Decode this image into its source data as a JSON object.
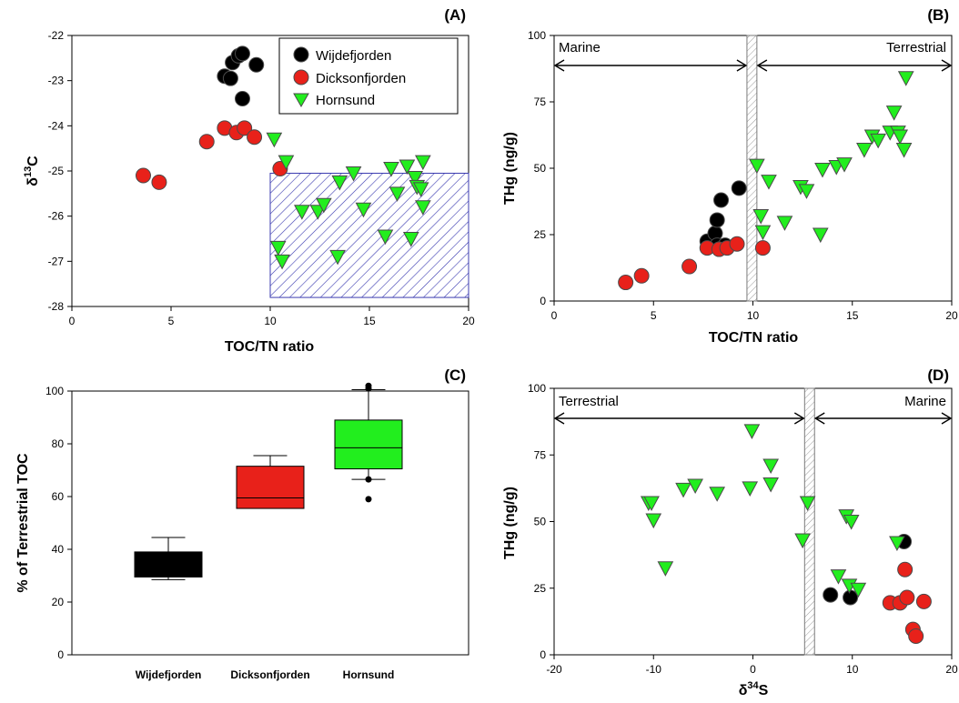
{
  "colors": {
    "wijdefjorden": "#000000",
    "dicksonfjorden": "#e8211a",
    "hornsund": "#22ee1e",
    "hatch": "#3b3bb0",
    "marker_edge": "#4a4a4a"
  },
  "panels": {
    "A": {
      "tag": "(A)",
      "xlabel": "TOC/TN ratio",
      "ylabel_main": "δ",
      "ylabel_sup": "13",
      "ylabel_tail": "C",
      "xlim": [
        0,
        20
      ],
      "ylim": [
        -28,
        -22
      ],
      "xticks": [
        "0",
        "5",
        "10",
        "15",
        "20"
      ],
      "yticks": [
        "-22",
        "-23",
        "-24",
        "-25",
        "-26",
        "-27",
        "-28"
      ],
      "legend": [
        "Wijdefjorden",
        "Dicksonfjorden",
        "Hornsund"
      ]
    },
    "B": {
      "tag": "(B)",
      "xlabel": "TOC/TN ratio",
      "ylabel": "THg (ng/g)",
      "xlim": [
        0,
        20
      ],
      "ylim": [
        0,
        100
      ],
      "xticks": [
        "0",
        "5",
        "10",
        "15",
        "20"
      ],
      "yticks": [
        "0",
        "25",
        "50",
        "75",
        "100"
      ],
      "left_region": "Marine",
      "right_region": "Terrestrial"
    },
    "C": {
      "tag": "(C)",
      "ylabel": "% of Terrestrial TOC",
      "ylim": [
        0,
        100
      ],
      "yticks": [
        "0",
        "20",
        "40",
        "60",
        "80",
        "100"
      ],
      "categories": [
        "Wijdefjorden",
        "Dicksonfjorden",
        "Hornsund"
      ]
    },
    "D": {
      "tag": "(D)",
      "xlabel_main": "δ",
      "xlabel_sup": "34",
      "xlabel_tail": "S",
      "ylabel": "THg (ng/g)",
      "xlim": [
        -20,
        20
      ],
      "ylim": [
        0,
        100
      ],
      "xticks": [
        "-20",
        "-10",
        "0",
        "10",
        "20"
      ],
      "yticks": [
        "0",
        "25",
        "50",
        "75",
        "100"
      ],
      "left_region": "Terrestrial",
      "right_region": "Marine"
    }
  },
  "chart_data": [
    {
      "panel": "A",
      "type": "scatter",
      "xlim": [
        0,
        20
      ],
      "ylim": [
        -28,
        -22
      ],
      "legend_position": "top-right",
      "shaded_region": {
        "x": [
          10,
          20
        ],
        "y": [
          -27.8,
          -25.05
        ]
      },
      "series": [
        {
          "name": "Wijdefjorden",
          "marker": "circle",
          "points": [
            [
              7.7,
              -22.9
            ],
            [
              8.1,
              -22.6
            ],
            [
              8.4,
              -22.45
            ],
            [
              8.6,
              -22.4
            ],
            [
              9.3,
              -22.65
            ],
            [
              8.0,
              -22.95
            ],
            [
              8.6,
              -23.4
            ]
          ]
        },
        {
          "name": "Dicksonfjorden",
          "marker": "circle",
          "points": [
            [
              3.6,
              -25.1
            ],
            [
              4.4,
              -25.25
            ],
            [
              6.8,
              -24.35
            ],
            [
              7.7,
              -24.05
            ],
            [
              8.3,
              -24.15
            ],
            [
              8.7,
              -24.05
            ],
            [
              9.2,
              -24.25
            ],
            [
              10.5,
              -24.95
            ]
          ]
        },
        {
          "name": "Hornsund",
          "marker": "triangle-down",
          "points": [
            [
              10.2,
              -24.3
            ],
            [
              10.8,
              -24.8
            ],
            [
              10.4,
              -26.7
            ],
            [
              10.6,
              -27.0
            ],
            [
              11.6,
              -25.9
            ],
            [
              12.4,
              -25.9
            ],
            [
              12.7,
              -25.75
            ],
            [
              13.4,
              -26.9
            ],
            [
              13.5,
              -25.25
            ],
            [
              14.2,
              -25.05
            ],
            [
              14.7,
              -25.85
            ],
            [
              15.8,
              -26.45
            ],
            [
              16.1,
              -24.95
            ],
            [
              16.4,
              -25.5
            ],
            [
              16.9,
              -24.9
            ],
            [
              17.1,
              -26.5
            ],
            [
              17.3,
              -25.15
            ],
            [
              17.4,
              -25.35
            ],
            [
              17.6,
              -25.4
            ],
            [
              17.7,
              -24.8
            ],
            [
              17.7,
              -25.8
            ]
          ]
        }
      ]
    },
    {
      "panel": "B",
      "type": "scatter",
      "xlim": [
        0,
        20
      ],
      "ylim": [
        0,
        100
      ],
      "divider_x": [
        9.7,
        10.2
      ],
      "arrows": [
        {
          "label": "Marine",
          "from": 0,
          "to": 9.7
        },
        {
          "label": "Terrestrial",
          "from": 10.2,
          "to": 20
        }
      ],
      "series": [
        {
          "name": "Wijdefjorden",
          "marker": "circle",
          "points": [
            [
              7.7,
              22.5
            ],
            [
              8.1,
              25.5
            ],
            [
              8.2,
              30.5
            ],
            [
              8.4,
              38.0
            ],
            [
              9.3,
              42.5
            ],
            [
              8.2,
              21.0
            ],
            [
              8.6,
              21.0
            ]
          ]
        },
        {
          "name": "Dicksonfjorden",
          "marker": "circle",
          "points": [
            [
              3.6,
              7.0
            ],
            [
              4.4,
              9.5
            ],
            [
              6.8,
              13.0
            ],
            [
              7.7,
              20.0
            ],
            [
              8.3,
              19.5
            ],
            [
              8.7,
              20.0
            ],
            [
              9.2,
              21.5
            ],
            [
              10.5,
              20.0
            ]
          ]
        },
        {
          "name": "Hornsund",
          "marker": "triangle-down",
          "points": [
            [
              10.2,
              51.0
            ],
            [
              10.4,
              32.0
            ],
            [
              10.5,
              26.0
            ],
            [
              10.8,
              45.0
            ],
            [
              11.6,
              29.5
            ],
            [
              12.4,
              43.0
            ],
            [
              12.7,
              41.5
            ],
            [
              13.4,
              25.0
            ],
            [
              13.5,
              49.5
            ],
            [
              14.2,
              50.5
            ],
            [
              14.6,
              51.5
            ],
            [
              15.6,
              57.0
            ],
            [
              16.0,
              62.0
            ],
            [
              16.3,
              60.5
            ],
            [
              16.9,
              63.5
            ],
            [
              17.1,
              71.0
            ],
            [
              17.3,
              63.5
            ],
            [
              17.4,
              62.0
            ],
            [
              17.6,
              57.0
            ],
            [
              17.7,
              84.0
            ]
          ]
        }
      ]
    },
    {
      "panel": "C",
      "type": "box",
      "ylim": [
        0,
        100
      ],
      "categories": [
        "Wijdefjorden",
        "Dicksonfjorden",
        "Hornsund"
      ],
      "boxes": [
        {
          "name": "Wijdefjorden",
          "whisker_low": 28.5,
          "q1": 29.5,
          "median": 34.5,
          "q3": 39.0,
          "whisker_high": 44.5,
          "outliers": []
        },
        {
          "name": "Dicksonfjorden",
          "whisker_low": 55.5,
          "q1": 55.5,
          "median": 59.5,
          "q3": 71.5,
          "whisker_high": 75.5,
          "outliers": []
        },
        {
          "name": "Hornsund",
          "whisker_low": 66.5,
          "q1": 70.5,
          "median": 78.5,
          "q3": 89.0,
          "whisker_high": 100.5,
          "outliers": [
            59.0,
            66.5,
            101.0,
            102.0
          ]
        }
      ]
    },
    {
      "panel": "D",
      "type": "scatter",
      "xlim": [
        -20,
        20
      ],
      "ylim": [
        0,
        100
      ],
      "divider_x": [
        5.2,
        6.2
      ],
      "arrows": [
        {
          "label": "Terrestrial",
          "from": -20,
          "to": 5.2
        },
        {
          "label": "Marine",
          "from": 6.2,
          "to": 20
        }
      ],
      "series": [
        {
          "name": "Wijdefjorden",
          "marker": "circle",
          "points": [
            [
              7.8,
              22.5
            ],
            [
              9.8,
              21.5
            ],
            [
              15.2,
              42.5
            ]
          ]
        },
        {
          "name": "Dicksonfjorden",
          "marker": "circle",
          "points": [
            [
              13.8,
              19.5
            ],
            [
              14.8,
              19.5
            ],
            [
              15.3,
              32.0
            ],
            [
              15.5,
              21.5
            ],
            [
              16.1,
              9.5
            ],
            [
              16.4,
              7.0
            ],
            [
              17.2,
              20.0
            ]
          ]
        },
        {
          "name": "Hornsund",
          "marker": "triangle-down",
          "points": [
            [
              -10.5,
              57.0
            ],
            [
              -10.2,
              57.0
            ],
            [
              -10.0,
              50.5
            ],
            [
              -8.8,
              32.5
            ],
            [
              -7.0,
              62.0
            ],
            [
              -5.8,
              63.5
            ],
            [
              -3.6,
              60.5
            ],
            [
              -0.3,
              62.5
            ],
            [
              -0.1,
              84.0
            ],
            [
              1.8,
              71.0
            ],
            [
              1.8,
              64.0
            ],
            [
              5.0,
              43.0
            ],
            [
              5.5,
              57.0
            ],
            [
              8.6,
              29.5
            ],
            [
              9.4,
              52.0
            ],
            [
              9.7,
              26.0
            ],
            [
              9.9,
              50.0
            ],
            [
              10.6,
              24.5
            ],
            [
              14.5,
              42.0
            ]
          ]
        }
      ]
    }
  ]
}
